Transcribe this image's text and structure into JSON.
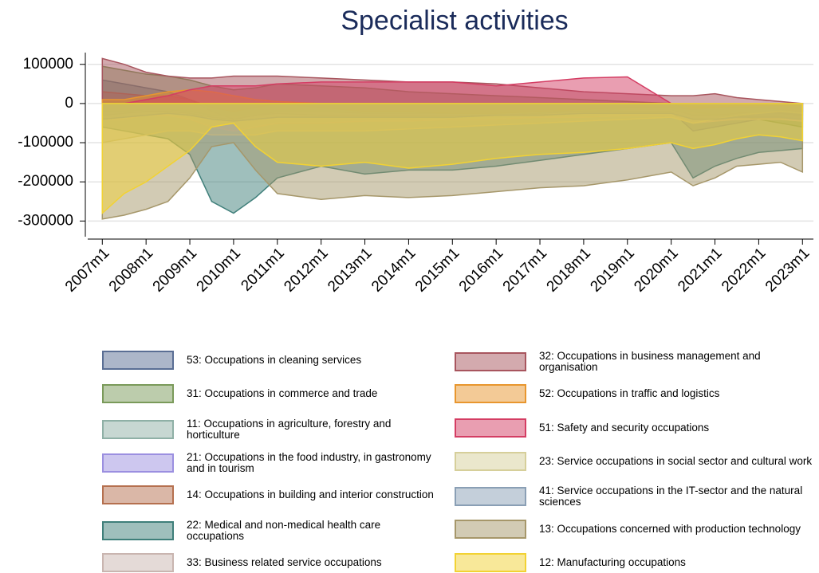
{
  "chart_data": {
    "type": "area",
    "title": "Specialist activities",
    "x": [
      "2007m1",
      "2007m7",
      "2008m1",
      "2008m7",
      "2009m1",
      "2009m7",
      "2010m1",
      "2010m7",
      "2011m1",
      "2012m1",
      "2013m1",
      "2014m1",
      "2015m1",
      "2016m1",
      "2017m1",
      "2018m1",
      "2019m1",
      "2020m1",
      "2020m7",
      "2021m1",
      "2021m7",
      "2022m1",
      "2022m7",
      "2023m1"
    ],
    "xlim": [
      "2006m9",
      "2023m4"
    ],
    "xticks": [
      "2007m1",
      "2008m1",
      "2009m1",
      "2010m1",
      "2011m1",
      "2012m1",
      "2013m1",
      "2014m1",
      "2015m1",
      "2016m1",
      "2017m1",
      "2018m1",
      "2019m1",
      "2020m1",
      "2021m1",
      "2022m1",
      "2023m1"
    ],
    "ylim": [
      -340000,
      130000
    ],
    "yticks": [
      -300000,
      -200000,
      -100000,
      0,
      100000
    ],
    "grid": true,
    "series": [
      {
        "name": "53: Occupations in cleaning services",
        "color": "#5a6e94",
        "values": [
          60000,
          50000,
          40000,
          30000,
          10000,
          -20000,
          -40000,
          -30000,
          -20000,
          -20000,
          -25000,
          -25000,
          -25000,
          -25000,
          -20000,
          -20000,
          -15000,
          -15000,
          -30000,
          -30000,
          -25000,
          -20000,
          -25000,
          -30000
        ]
      },
      {
        "name": "31: Occupations in commerce and trade",
        "color": "#7a9a5a",
        "values": [
          95000,
          85000,
          75000,
          70000,
          60000,
          45000,
          35000,
          40000,
          50000,
          45000,
          40000,
          30000,
          25000,
          20000,
          15000,
          10000,
          5000,
          0,
          -20000,
          -30000,
          -30000,
          -40000,
          -50000,
          -60000
        ]
      },
      {
        "name": "11: Occupations in agriculture, forestry and horticulture",
        "color": "#8fb0a6",
        "values": [
          -20000,
          -20000,
          -15000,
          -15000,
          -20000,
          -30000,
          -30000,
          -25000,
          -20000,
          -20000,
          -20000,
          -20000,
          -20000,
          -20000,
          -20000,
          -15000,
          -15000,
          -15000,
          -20000,
          -20000,
          -20000,
          -20000,
          -20000,
          -20000
        ]
      },
      {
        "name": "21: Occupations in the food industry, in gastronomy and in tourism",
        "color": "#9b8fe0",
        "values": [
          -30000,
          -25000,
          -20000,
          -20000,
          -25000,
          -35000,
          -40000,
          -30000,
          -25000,
          -30000,
          -30000,
          -30000,
          -30000,
          -30000,
          -25000,
          -20000,
          -20000,
          -20000,
          -70000,
          -60000,
          -50000,
          -40000,
          -40000,
          -40000
        ]
      },
      {
        "name": "14: Occupations in building and interior construction",
        "color": "#b5704f",
        "values": [
          30000,
          25000,
          20000,
          20000,
          10000,
          -10000,
          -20000,
          -10000,
          0,
          -10000,
          -20000,
          -20000,
          -25000,
          -25000,
          -20000,
          -15000,
          -10000,
          -10000,
          -15000,
          -10000,
          -10000,
          -10000,
          -15000,
          -20000
        ]
      },
      {
        "name": "22: Medical and non-medical health care occupations",
        "color": "#3f7f7a",
        "values": [
          -60000,
          -70000,
          -80000,
          -90000,
          -130000,
          -250000,
          -280000,
          -240000,
          -190000,
          -160000,
          -180000,
          -170000,
          -170000,
          -160000,
          -145000,
          -130000,
          -115000,
          -100000,
          -190000,
          -160000,
          -140000,
          -125000,
          -120000,
          -115000
        ]
      },
      {
        "name": "33: Business related service occupations",
        "color": "#c9b5b0",
        "values": [
          -40000,
          -40000,
          -30000,
          -30000,
          -40000,
          -60000,
          -70000,
          -60000,
          -50000,
          -50000,
          -45000,
          -45000,
          -40000,
          -40000,
          -35000,
          -35000,
          -30000,
          -30000,
          -50000,
          -45000,
          -40000,
          -40000,
          -40000,
          -45000
        ]
      },
      {
        "name": "32: Occupations in business management and organisation",
        "color": "#a8555e",
        "values": [
          115000,
          100000,
          80000,
          70000,
          65000,
          65000,
          70000,
          70000,
          70000,
          65000,
          60000,
          55000,
          55000,
          50000,
          40000,
          30000,
          25000,
          20000,
          20000,
          25000,
          15000,
          10000,
          5000,
          0
        ]
      },
      {
        "name": "52: Occupations in traffic and logistics",
        "color": "#e8962e",
        "values": [
          10000,
          10000,
          20000,
          30000,
          35000,
          30000,
          20000,
          10000,
          5000,
          0,
          0,
          0,
          0,
          0,
          0,
          0,
          0,
          0,
          -10000,
          -10000,
          -5000,
          -5000,
          -5000,
          -5000
        ]
      },
      {
        "name": "51: Safety and security occupations",
        "color": "#d43d63",
        "values": [
          0,
          0,
          10000,
          20000,
          35000,
          45000,
          45000,
          45000,
          50000,
          55000,
          55000,
          55000,
          55000,
          45000,
          55000,
          65000,
          68000,
          0,
          0,
          0,
          0,
          0,
          0,
          0
        ]
      },
      {
        "name": "23: Service occupations in social sector and cultural work",
        "color": "#d6cf9a",
        "values": [
          -100000,
          -90000,
          -80000,
          -70000,
          -70000,
          -80000,
          -80000,
          -80000,
          -70000,
          -70000,
          -70000,
          -65000,
          -60000,
          -55000,
          -50000,
          -45000,
          -40000,
          -35000,
          -50000,
          -40000,
          -30000,
          -25000,
          -20000,
          -25000
        ]
      },
      {
        "name": "41: Service occupations in the IT-sector and the natural sciences",
        "color": "#8a9fb5",
        "values": [
          -40000,
          -35000,
          -30000,
          -25000,
          -30000,
          -40000,
          -45000,
          -40000,
          -35000,
          -35000,
          -35000,
          -35000,
          -35000,
          -30000,
          -30000,
          -25000,
          -25000,
          -25000,
          -40000,
          -40000,
          -35000,
          -35000,
          -35000,
          -40000
        ]
      },
      {
        "name": "13: Occupations concerned with production technology",
        "color": "#a6976a",
        "values": [
          -295000,
          -285000,
          -270000,
          -250000,
          -190000,
          -110000,
          -100000,
          -170000,
          -230000,
          -245000,
          -235000,
          -240000,
          -235000,
          -225000,
          -215000,
          -210000,
          -195000,
          -175000,
          -210000,
          -190000,
          -160000,
          -155000,
          -150000,
          -175000
        ]
      },
      {
        "name": "12: Manufacturing occupations",
        "color": "#f2d233",
        "values": [
          -280000,
          -230000,
          -200000,
          -160000,
          -120000,
          -60000,
          -50000,
          -110000,
          -150000,
          -160000,
          -150000,
          -165000,
          -155000,
          -140000,
          -130000,
          -125000,
          -115000,
          -100000,
          -115000,
          -105000,
          -90000,
          -80000,
          -85000,
          -95000
        ]
      }
    ]
  }
}
